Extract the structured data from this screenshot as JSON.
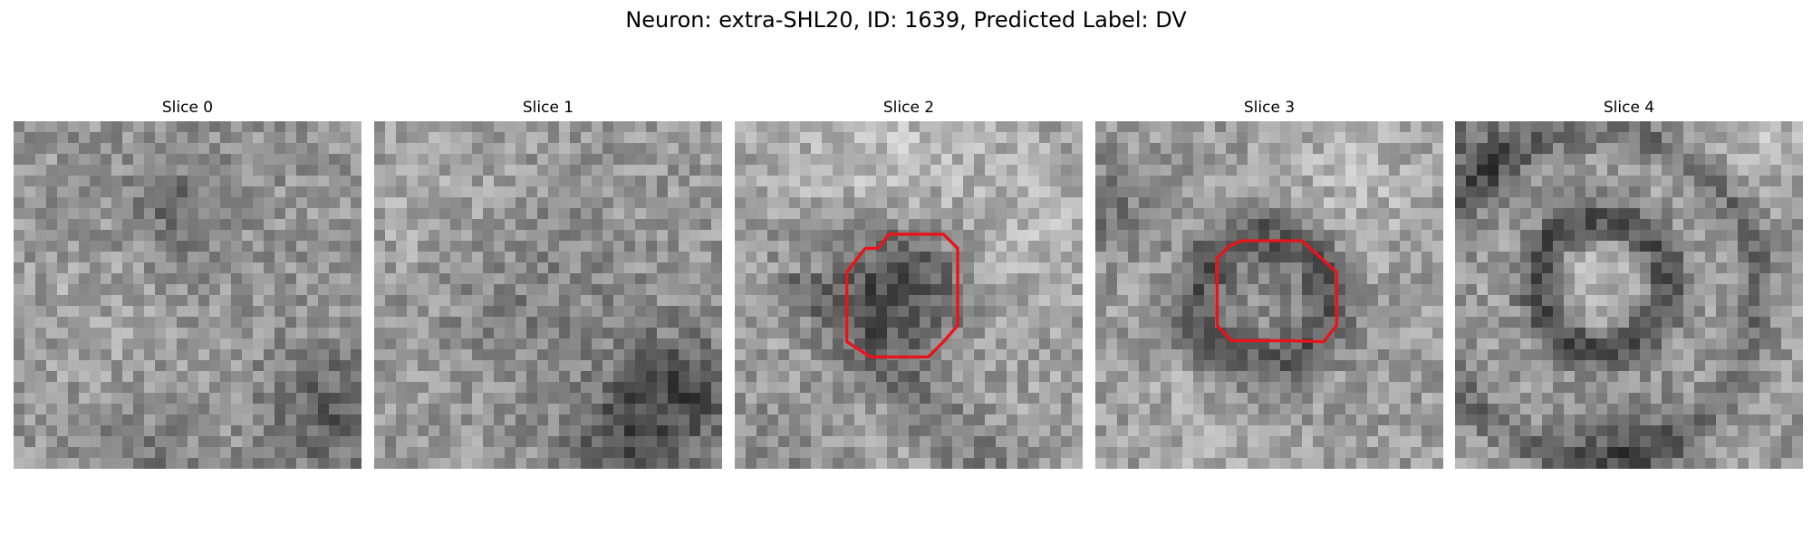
{
  "figure": {
    "title": "Neuron: extra-SHL20, ID: 1639, Predicted Label: DV"
  },
  "slices": [
    {
      "label": "Slice 0",
      "has_roi": false
    },
    {
      "label": "Slice 1",
      "has_roi": false
    },
    {
      "label": "Slice 2",
      "has_roi": true
    },
    {
      "label": "Slice 3",
      "has_roi": true
    },
    {
      "label": "Slice 4",
      "has_roi": false
    }
  ],
  "style": {
    "roi_color": "#e8141b",
    "colormap": "grayscale"
  }
}
